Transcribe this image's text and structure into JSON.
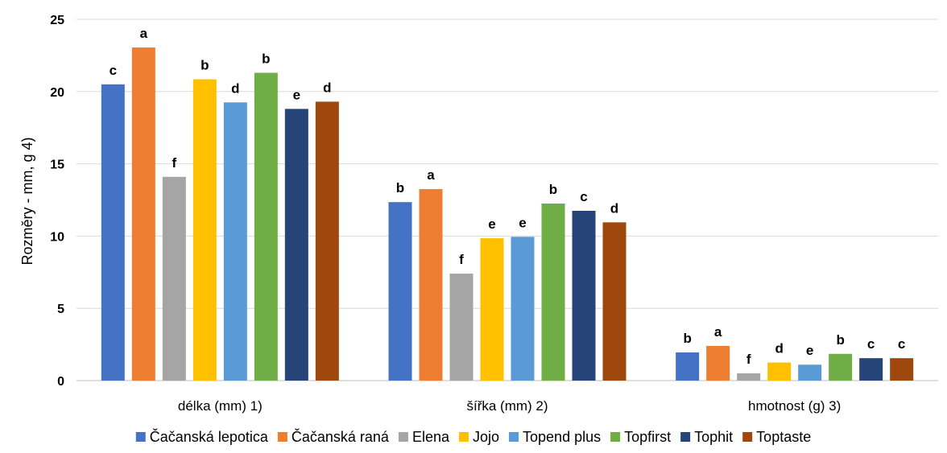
{
  "chart_data": {
    "type": "bar",
    "ylabel": "Rozměry  - mm, g 4)",
    "ylim": [
      0,
      25
    ],
    "yticks": [
      0,
      5,
      10,
      15,
      20,
      25
    ],
    "grid": true,
    "legend_position": "bottom",
    "categories": [
      "délka (mm) 1)",
      "šířka (mm) 2)",
      "hmotnost (g) 3)"
    ],
    "series": [
      {
        "name": "Čačanská lepotica",
        "color": "#4472C4",
        "values": [
          20.5,
          12.35,
          1.95
        ],
        "labels": [
          "c",
          "b",
          "b"
        ]
      },
      {
        "name": "Čačanská raná",
        "color": "#ED7D31",
        "values": [
          23.05,
          13.25,
          2.4
        ],
        "labels": [
          "a",
          "a",
          "a"
        ]
      },
      {
        "name": "Elena",
        "color": "#A5A5A5",
        "values": [
          14.1,
          7.4,
          0.5
        ],
        "labels": [
          "f",
          "f",
          "f"
        ]
      },
      {
        "name": "Jojo",
        "color": "#FFC000",
        "values": [
          20.85,
          9.85,
          1.25
        ],
        "labels": [
          "b",
          "e",
          "d"
        ]
      },
      {
        "name": "Topend plus",
        "color": "#5B9BD5",
        "values": [
          19.25,
          9.95,
          1.1
        ],
        "labels": [
          "d",
          "e",
          "e"
        ]
      },
      {
        "name": "Topfirst",
        "color": "#70AD47",
        "values": [
          21.3,
          12.25,
          1.85
        ],
        "labels": [
          "b",
          "b",
          "b"
        ]
      },
      {
        "name": "Tophit",
        "color": "#264478",
        "values": [
          18.8,
          11.75,
          1.55
        ],
        "labels": [
          "e",
          "c",
          "c"
        ]
      },
      {
        "name": "Toptaste",
        "color": "#9E480E",
        "values": [
          19.3,
          10.95,
          1.55
        ],
        "labels": [
          "d",
          "d",
          "c"
        ]
      }
    ]
  }
}
